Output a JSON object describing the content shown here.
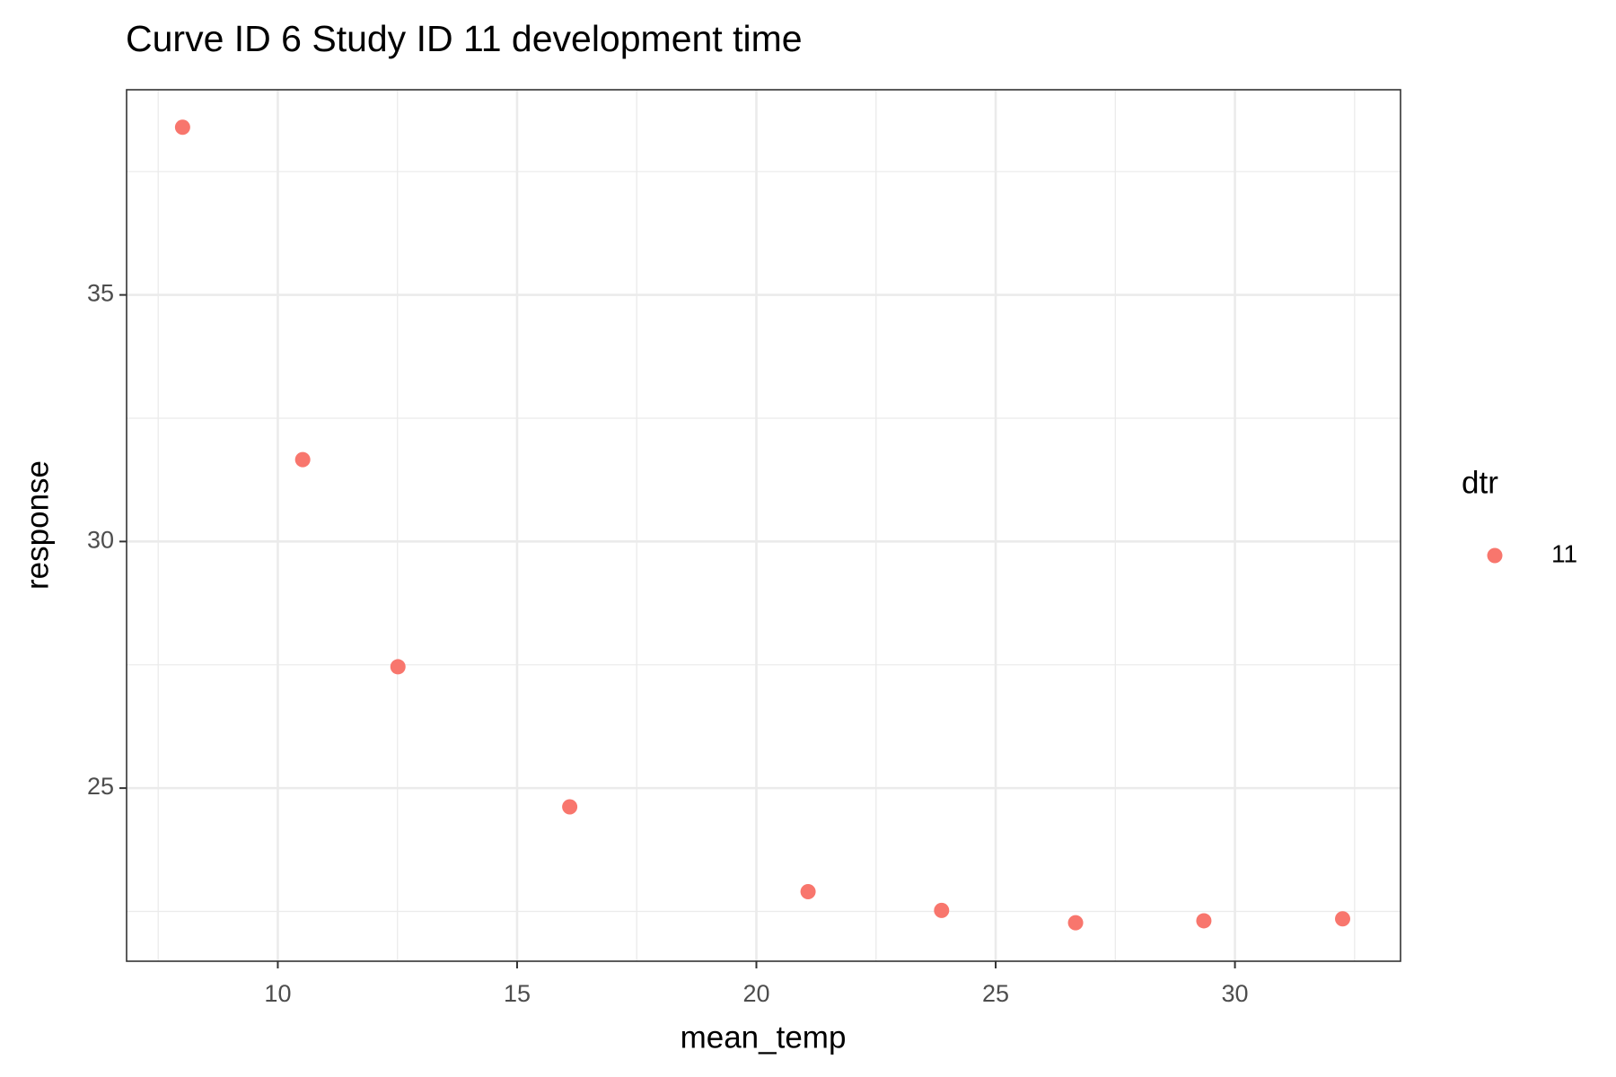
{
  "chart_data": {
    "type": "scatter",
    "title": "Curve ID 6 Study ID 11 development time",
    "x_label": "mean_temp",
    "y_label": "response",
    "legend_title": "dtr",
    "legend_position": "right",
    "series": [
      {
        "name": "11",
        "color": "#f8766d",
        "x": [
          8.01,
          10.52,
          12.51,
          16.1,
          21.08,
          23.87,
          26.67,
          29.35,
          32.25
        ],
        "values": [
          38.4,
          31.66,
          27.46,
          24.62,
          22.9,
          22.52,
          22.27,
          22.31,
          22.35
        ]
      }
    ],
    "xlim": [
      6.84,
      33.46
    ],
    "xticks": [
      10,
      15,
      20,
      25,
      30
    ],
    "ylim": [
      21.49,
      39.16
    ],
    "yticks": [
      25,
      30,
      35
    ],
    "x_minor_grid": [
      7.5,
      12.5,
      17.5,
      22.5,
      27.5,
      32.5
    ],
    "y_minor_grid": [
      22.5,
      27.5,
      32.5,
      37.5
    ],
    "grid": true
  }
}
